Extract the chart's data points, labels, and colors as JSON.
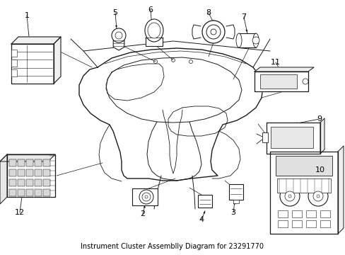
{
  "title": "Instrument Cluster Assemblly Diagram for 23291770",
  "background_color": "#ffffff",
  "line_color": "#1a1a1a",
  "figsize": [
    4.89,
    3.6
  ],
  "dpi": 100
}
